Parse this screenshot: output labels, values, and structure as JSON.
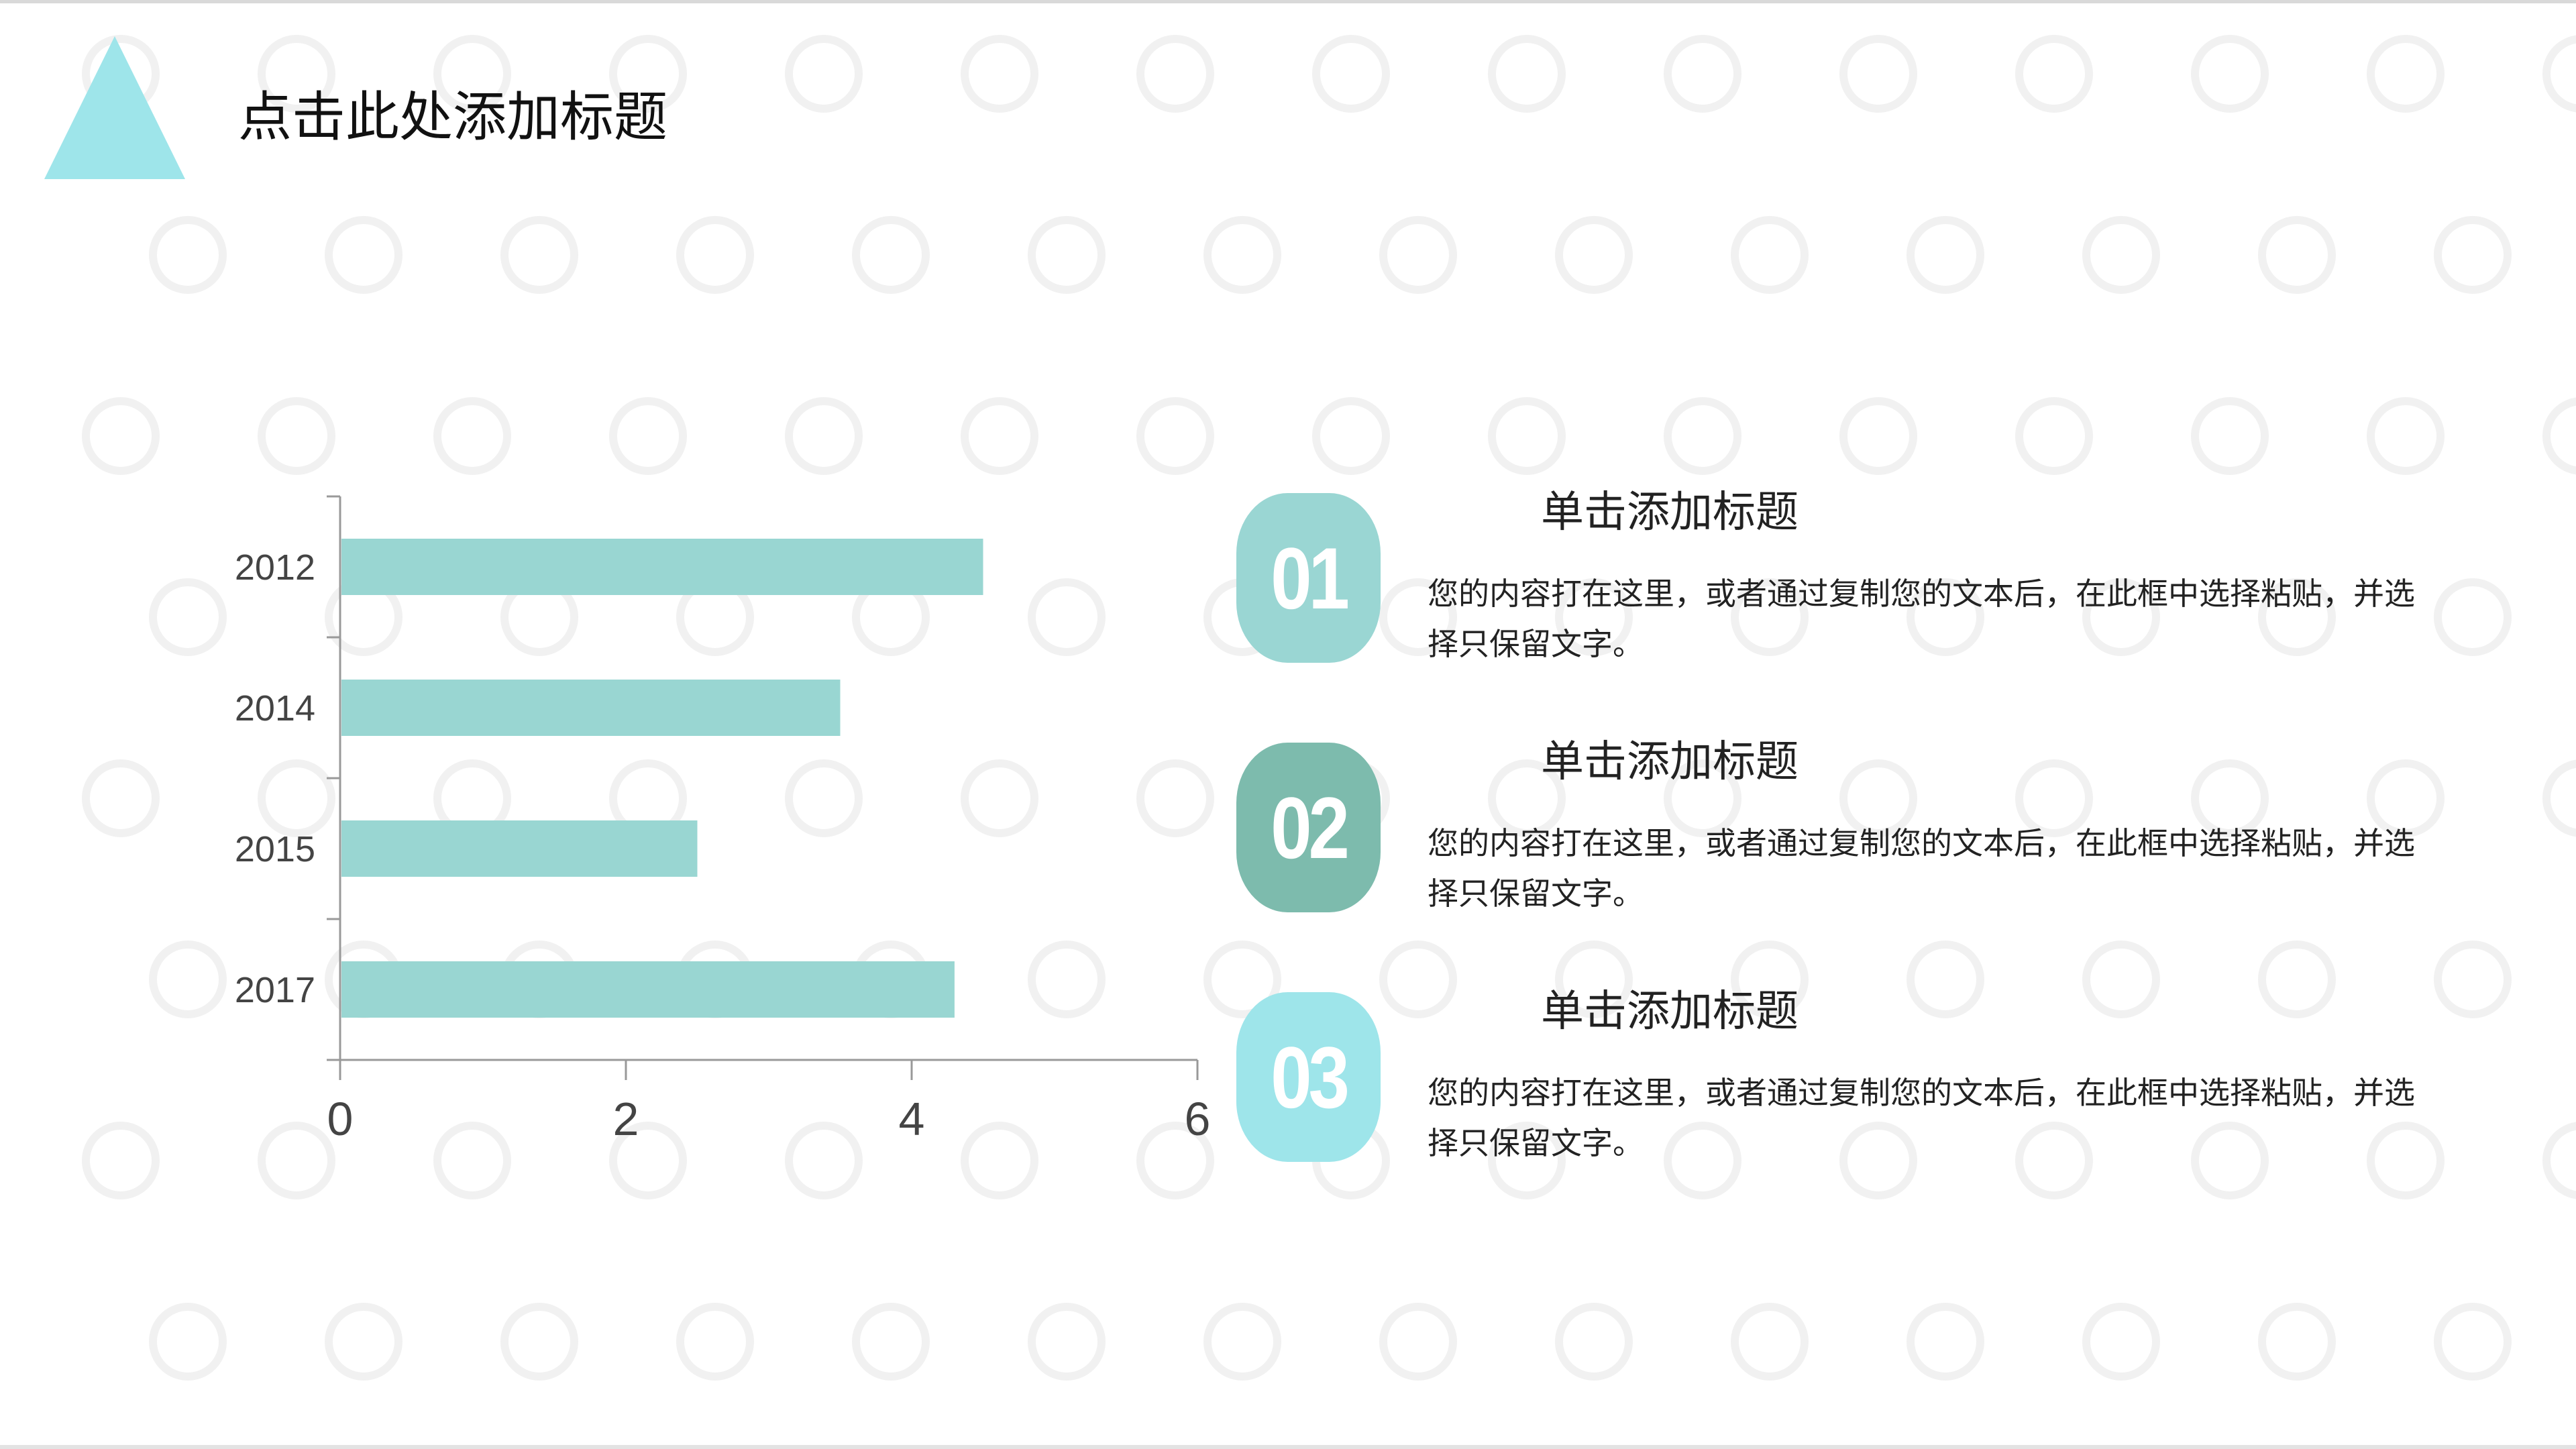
{
  "title": "点击此处添加标题",
  "colors": {
    "accent": "#9EE5EA",
    "bar": "#99D6D2",
    "badge1": "#9AD6D3",
    "badge2": "#7DBBAD",
    "badge3": "#9EE5EA",
    "axis": "#999999"
  },
  "chart_data": {
    "type": "bar",
    "orientation": "horizontal",
    "categories": [
      "2012",
      "2014",
      "2015",
      "2017"
    ],
    "values": [
      4.5,
      3.5,
      2.5,
      4.3
    ],
    "xlim": [
      0,
      6
    ],
    "xticks": [
      "0",
      "2",
      "4",
      "6"
    ],
    "grid": false,
    "title": "",
    "xlabel": "",
    "ylabel": ""
  },
  "items": [
    {
      "number": "01",
      "heading": "单击添加标题",
      "body": "您的内容打在这里，或者通过复制您的文本后，在此框中选择粘贴，并选择只保留文字。"
    },
    {
      "number": "02",
      "heading": "单击添加标题",
      "body": "您的内容打在这里，或者通过复制您的文本后，在此框中选择粘贴，并选择只保留文字。"
    },
    {
      "number": "03",
      "heading": "单击添加标题",
      "body": "您的内容打在这里，或者通过复制您的文本后，在此框中选择粘贴，并选择只保留文字。"
    }
  ]
}
